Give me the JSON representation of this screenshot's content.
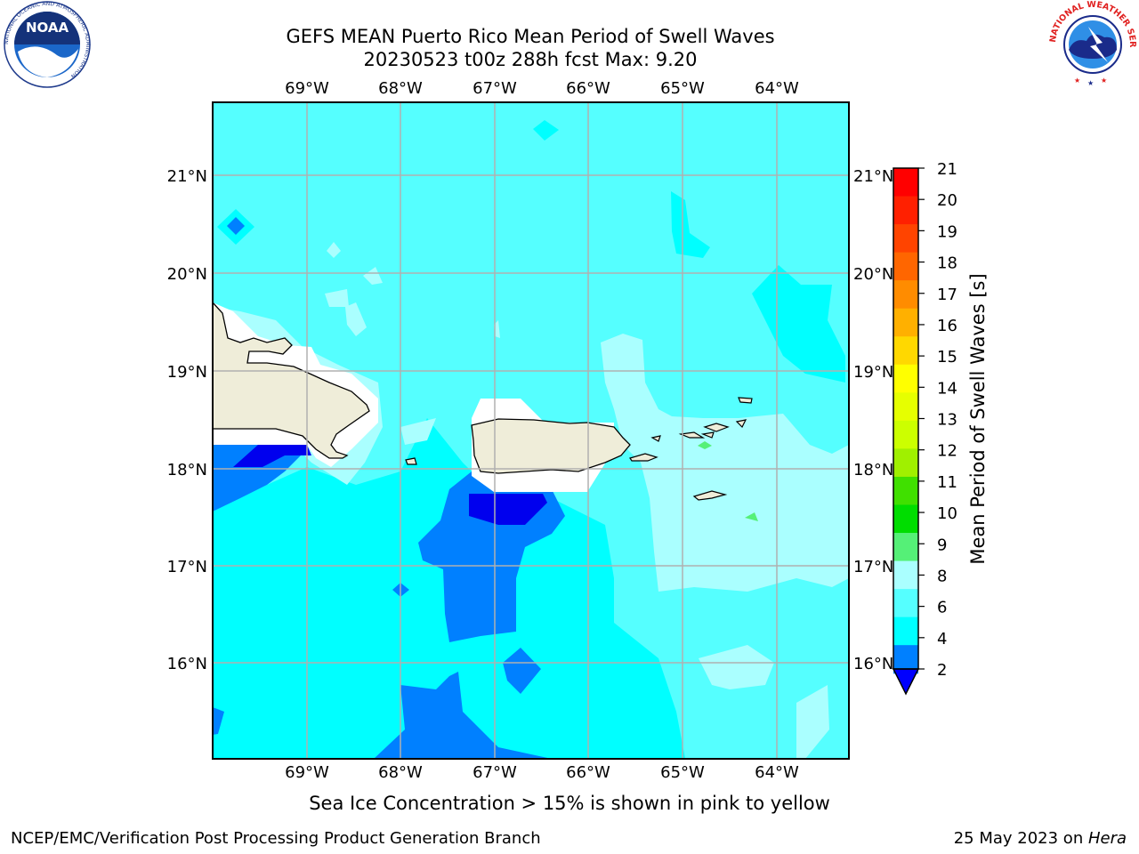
{
  "title": {
    "line1": "GEFS MEAN Puerto Rico Mean Period of Swell Waves",
    "line2": "20230523 t00z 288h fcst   Max: 9.20"
  },
  "map": {
    "lon_labels": [
      "69°W",
      "68°W",
      "67°W",
      "66°W",
      "65°W",
      "64°W"
    ],
    "lat_labels": [
      "21°N",
      "20°N",
      "19°N",
      "18°N",
      "17°N",
      "16°N"
    ]
  },
  "colorbar": {
    "label": "Mean Period of Swell Waves [s]",
    "ticks": [
      "21",
      "20",
      "19",
      "18",
      "17",
      "16",
      "15",
      "14",
      "13",
      "12",
      "11",
      "10",
      "9",
      "8",
      "6",
      "4",
      "2"
    ],
    "colors": [
      "#ff0000",
      "#ff2000",
      "#ff4400",
      "#ff6600",
      "#ff8c00",
      "#ffb000",
      "#ffd800",
      "#ffff00",
      "#e6ff00",
      "#ccff00",
      "#a0f000",
      "#40e000",
      "#00dd00",
      "#55f077",
      "#aaffff",
      "#55ffff",
      "#00ffff",
      "#0080ff",
      "#0000ff"
    ]
  },
  "note": "Sea Ice Concentration > 15% is shown in pink to yellow",
  "footer": {
    "left": "NCEP/EMC/Verification Post Processing Product Generation Branch",
    "right_prefix": "25 May 2023 on ",
    "right_host": "Hera"
  },
  "logos": {
    "noaa_text": "NOAA",
    "noaa_ring": "NATIONAL OCEANIC AND ATMOSPHERIC ADMINISTRATION",
    "noaa_bottom": "U.S. DEPARTMENT OF COMMERCE",
    "nws_ring": "NATIONAL WEATHER SERVICE"
  }
}
